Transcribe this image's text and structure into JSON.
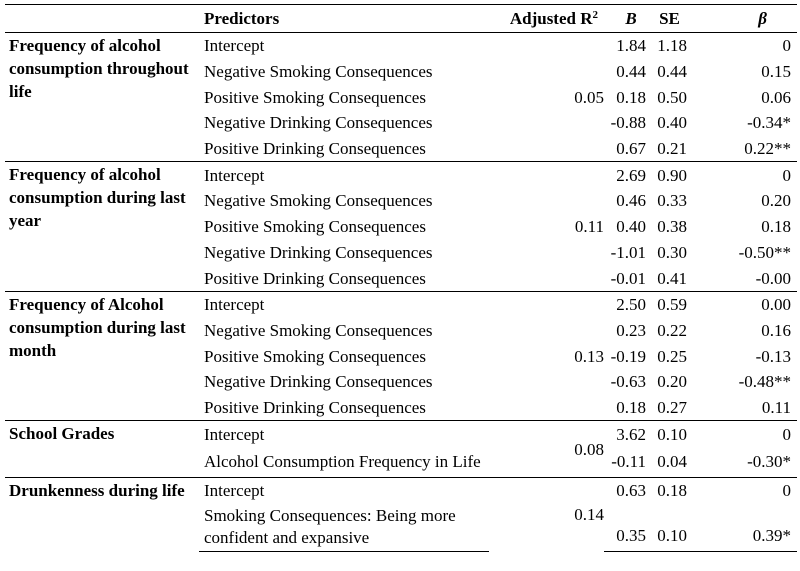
{
  "headers": {
    "group": "",
    "predictors": "Predictors",
    "adjusted_r2": "Adjusted R",
    "adjusted_r2_sup": "2",
    "b": "B",
    "se": "SE",
    "beta": "β"
  },
  "groups": [
    {
      "label": "Frequency of alcohol consumption throughout life",
      "adjusted_r2": "0.05",
      "rows": [
        {
          "predictor": "Intercept",
          "b": "1.84",
          "se": "1.18",
          "beta": "0"
        },
        {
          "predictor": "Negative Smoking Consequences",
          "b": "0.44",
          "se": "0.44",
          "beta": "0.15"
        },
        {
          "predictor": "Positive Smoking Consequences",
          "b": "0.18",
          "se": "0.50",
          "beta": "0.06"
        },
        {
          "predictor": "Negative Drinking Consequences",
          "b": "-0.88",
          "se": "0.40",
          "beta": "-0.34*"
        },
        {
          "predictor": "Positive Drinking Consequences",
          "b": "0.67",
          "se": "0.21",
          "beta": "0.22**"
        }
      ]
    },
    {
      "label": "Frequency of alcohol consumption during last year",
      "adjusted_r2": "0.11",
      "rows": [
        {
          "predictor": "Intercept",
          "b": "2.69",
          "se": "0.90",
          "beta": "0"
        },
        {
          "predictor": "Negative Smoking Consequences",
          "b": "0.46",
          "se": "0.33",
          "beta": "0.20"
        },
        {
          "predictor": "Positive Smoking Consequences",
          "b": "0.40",
          "se": "0.38",
          "beta": "0.18"
        },
        {
          "predictor": "Negative Drinking Consequences",
          "b": "-1.01",
          "se": "0.30",
          "beta": "-0.50**"
        },
        {
          "predictor": "Positive Drinking Consequences",
          "b": "-0.01",
          "se": "0.41",
          "beta": "-0.00"
        }
      ]
    },
    {
      "label": "Frequency of Alcohol consumption during last month",
      "adjusted_r2": "0.13",
      "rows": [
        {
          "predictor": "Intercept",
          "b": "2.50",
          "se": "0.59",
          "beta": "0.00"
        },
        {
          "predictor": "Negative Smoking Consequences",
          "b": "0.23",
          "se": "0.22",
          "beta": "0.16"
        },
        {
          "predictor": "Positive Smoking Consequences",
          "b": "-0.19",
          "se": "0.25",
          "beta": "-0.13"
        },
        {
          "predictor": "Negative Drinking Consequences",
          "b": "-0.63",
          "se": "0.20",
          "beta": "-0.48**"
        },
        {
          "predictor": "Positive Drinking Consequences",
          "b": "0.18",
          "se": "0.27",
          "beta": "0.11"
        }
      ]
    },
    {
      "label": "School Grades",
      "adjusted_r2": "0.08",
      "rows": [
        {
          "predictor": "Intercept",
          "b": "3.62",
          "se": "0.10",
          "beta": "0"
        },
        {
          "predictor": "Alcohol Consumption Frequency in Life",
          "b": "-0.11",
          "se": "0.04",
          "beta": "-0.30*"
        }
      ]
    },
    {
      "label": "Drunkenness during life",
      "adjusted_r2": "0.14",
      "rows": [
        {
          "predictor": "Intercept",
          "b": "0.63",
          "se": "0.18",
          "beta": "0"
        },
        {
          "predictor": "Smoking Consequences: Being more confident and expansive",
          "b": "0.35",
          "se": "0.10",
          "beta": "0.39*"
        }
      ]
    }
  ]
}
